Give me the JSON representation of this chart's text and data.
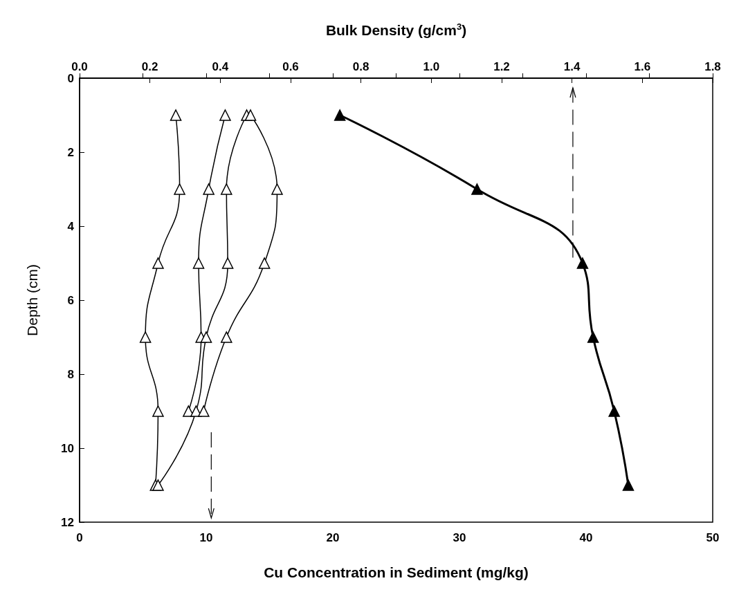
{
  "chart_data": {
    "type": "line",
    "xlabel": "Cu Concentration in Sediment (mg/kg)",
    "x2label": "Bulk Density (g/cm$^{3}$)",
    "ylabel": "Depth (cm)",
    "xlim": [
      0,
      50
    ],
    "xticks": [
      0,
      {
        "value": 5,
        "label": null
      },
      10,
      {
        "value": 15,
        "label": null
      },
      20,
      {
        "value": 25,
        "label": null
      },
      30,
      {
        "value": 35,
        "label": null
      },
      40,
      {
        "value": 45,
        "label": null
      },
      50
    ],
    "x2lim": [
      0,
      1.8
    ],
    "x2ticks": [
      {
        "value": 0,
        "label": "0.0"
      },
      0.2,
      0.4,
      0.6,
      0.8,
      {
        "value": 1,
        "label": "1.0"
      },
      1.2,
      1.4,
      1.6,
      1.8
    ],
    "ylim": [
      12,
      0
    ],
    "yticks": [
      0,
      2,
      4,
      6,
      8,
      10,
      12
    ],
    "grid": false,
    "marker": "triangle",
    "line_style": "solid",
    "series": [
      {
        "color": "#000000",
        "x": [
          7.6,
          7.9,
          6.2,
          5.2,
          6.2,
          6.0
        ],
        "values": [
          1,
          3,
          5,
          7,
          9,
          11
        ]
      },
      {
        "color": "#000000",
        "x": [
          11.5,
          10.2,
          9.4,
          9.6,
          8.6
        ],
        "values": [
          1,
          3,
          5,
          7,
          9
        ]
      },
      {
        "color": "#000000",
        "x": [
          13.2,
          11.6,
          11.7,
          10.0,
          9.2,
          6.2
        ],
        "values": [
          1,
          3,
          5,
          7,
          9,
          11
        ]
      },
      {
        "color": "#000000",
        "x": [
          13.5,
          15.6,
          14.6,
          11.6,
          9.8
        ],
        "values": [
          1,
          3,
          5,
          7,
          9
        ]
      },
      {
        "color": "#000000",
        "axis": "x2",
        "x": [
          0.74,
          1.13,
          1.43,
          1.46,
          1.52,
          1.56
        ],
        "values": [
          1,
          3,
          5,
          7,
          9,
          11
        ]
      }
    ]
  }
}
